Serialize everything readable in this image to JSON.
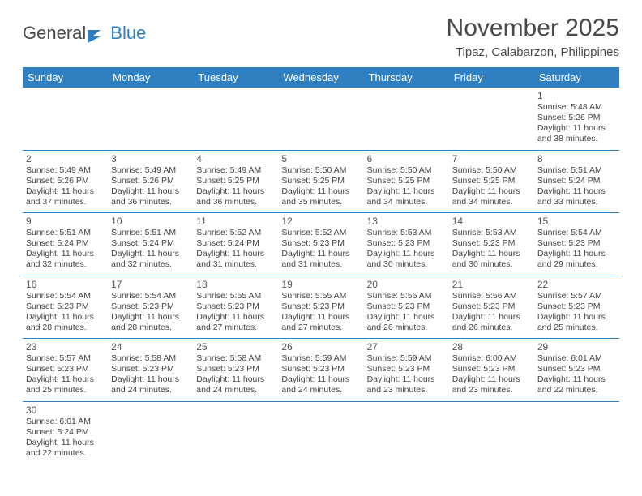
{
  "logo": {
    "text1": "General",
    "text2": "Blue"
  },
  "title": "November 2025",
  "subtitle": "Tipaz, Calabarzon, Philippines",
  "colors": {
    "header_bg": "#2f7fc1",
    "header_text": "#ffffff",
    "rule": "#2f7fc1",
    "logo_blue": "#2f7fc1",
    "text": "#4a4a4a"
  },
  "day_names": [
    "Sunday",
    "Monday",
    "Tuesday",
    "Wednesday",
    "Thursday",
    "Friday",
    "Saturday"
  ],
  "weeks": [
    [
      null,
      null,
      null,
      null,
      null,
      null,
      {
        "n": "1",
        "sr": "5:48 AM",
        "ss": "5:26 PM",
        "dl": "11 hours and 38 minutes."
      }
    ],
    [
      {
        "n": "2",
        "sr": "5:49 AM",
        "ss": "5:26 PM",
        "dl": "11 hours and 37 minutes."
      },
      {
        "n": "3",
        "sr": "5:49 AM",
        "ss": "5:26 PM",
        "dl": "11 hours and 36 minutes."
      },
      {
        "n": "4",
        "sr": "5:49 AM",
        "ss": "5:25 PM",
        "dl": "11 hours and 36 minutes."
      },
      {
        "n": "5",
        "sr": "5:50 AM",
        "ss": "5:25 PM",
        "dl": "11 hours and 35 minutes."
      },
      {
        "n": "6",
        "sr": "5:50 AM",
        "ss": "5:25 PM",
        "dl": "11 hours and 34 minutes."
      },
      {
        "n": "7",
        "sr": "5:50 AM",
        "ss": "5:25 PM",
        "dl": "11 hours and 34 minutes."
      },
      {
        "n": "8",
        "sr": "5:51 AM",
        "ss": "5:24 PM",
        "dl": "11 hours and 33 minutes."
      }
    ],
    [
      {
        "n": "9",
        "sr": "5:51 AM",
        "ss": "5:24 PM",
        "dl": "11 hours and 32 minutes."
      },
      {
        "n": "10",
        "sr": "5:51 AM",
        "ss": "5:24 PM",
        "dl": "11 hours and 32 minutes."
      },
      {
        "n": "11",
        "sr": "5:52 AM",
        "ss": "5:24 PM",
        "dl": "11 hours and 31 minutes."
      },
      {
        "n": "12",
        "sr": "5:52 AM",
        "ss": "5:23 PM",
        "dl": "11 hours and 31 minutes."
      },
      {
        "n": "13",
        "sr": "5:53 AM",
        "ss": "5:23 PM",
        "dl": "11 hours and 30 minutes."
      },
      {
        "n": "14",
        "sr": "5:53 AM",
        "ss": "5:23 PM",
        "dl": "11 hours and 30 minutes."
      },
      {
        "n": "15",
        "sr": "5:54 AM",
        "ss": "5:23 PM",
        "dl": "11 hours and 29 minutes."
      }
    ],
    [
      {
        "n": "16",
        "sr": "5:54 AM",
        "ss": "5:23 PM",
        "dl": "11 hours and 28 minutes."
      },
      {
        "n": "17",
        "sr": "5:54 AM",
        "ss": "5:23 PM",
        "dl": "11 hours and 28 minutes."
      },
      {
        "n": "18",
        "sr": "5:55 AM",
        "ss": "5:23 PM",
        "dl": "11 hours and 27 minutes."
      },
      {
        "n": "19",
        "sr": "5:55 AM",
        "ss": "5:23 PM",
        "dl": "11 hours and 27 minutes."
      },
      {
        "n": "20",
        "sr": "5:56 AM",
        "ss": "5:23 PM",
        "dl": "11 hours and 26 minutes."
      },
      {
        "n": "21",
        "sr": "5:56 AM",
        "ss": "5:23 PM",
        "dl": "11 hours and 26 minutes."
      },
      {
        "n": "22",
        "sr": "5:57 AM",
        "ss": "5:23 PM",
        "dl": "11 hours and 25 minutes."
      }
    ],
    [
      {
        "n": "23",
        "sr": "5:57 AM",
        "ss": "5:23 PM",
        "dl": "11 hours and 25 minutes."
      },
      {
        "n": "24",
        "sr": "5:58 AM",
        "ss": "5:23 PM",
        "dl": "11 hours and 24 minutes."
      },
      {
        "n": "25",
        "sr": "5:58 AM",
        "ss": "5:23 PM",
        "dl": "11 hours and 24 minutes."
      },
      {
        "n": "26",
        "sr": "5:59 AM",
        "ss": "5:23 PM",
        "dl": "11 hours and 24 minutes."
      },
      {
        "n": "27",
        "sr": "5:59 AM",
        "ss": "5:23 PM",
        "dl": "11 hours and 23 minutes."
      },
      {
        "n": "28",
        "sr": "6:00 AM",
        "ss": "5:23 PM",
        "dl": "11 hours and 23 minutes."
      },
      {
        "n": "29",
        "sr": "6:01 AM",
        "ss": "5:23 PM",
        "dl": "11 hours and 22 minutes."
      }
    ],
    [
      {
        "n": "30",
        "sr": "6:01 AM",
        "ss": "5:24 PM",
        "dl": "11 hours and 22 minutes."
      },
      null,
      null,
      null,
      null,
      null,
      null
    ]
  ],
  "labels": {
    "sunrise": "Sunrise:",
    "sunset": "Sunset:",
    "daylight": "Daylight:"
  }
}
